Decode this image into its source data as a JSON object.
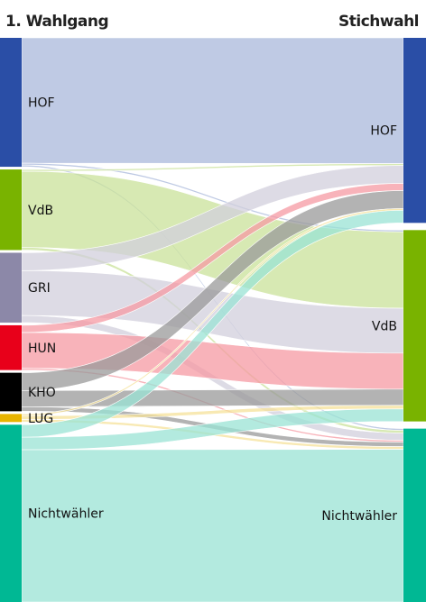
{
  "header": {
    "left_title": "1. Wahlgang",
    "right_title": "Stichwahl"
  },
  "nodes": {
    "left": [
      {
        "id": "HOF",
        "label": "HOF",
        "color": "#2a4ea6"
      },
      {
        "id": "VdB",
        "label": "VdB",
        "color": "#79b300"
      },
      {
        "id": "GRI",
        "label": "GRI",
        "color": "#8c88a8"
      },
      {
        "id": "HUN",
        "label": "HUN",
        "color": "#e8001a"
      },
      {
        "id": "KHO",
        "label": "KHO",
        "color": "#000000"
      },
      {
        "id": "LUG",
        "label": "LUG",
        "color": "#e8b400"
      },
      {
        "id": "NW",
        "label": "Nichtwähler",
        "color": "#00b894"
      }
    ],
    "right": [
      {
        "id": "HOF",
        "label": "HOF",
        "color": "#2a4ea6"
      },
      {
        "id": "VdB",
        "label": "VdB",
        "color": "#79b300"
      },
      {
        "id": "NW",
        "label": "Nichtwähler",
        "color": "#00b894"
      }
    ]
  },
  "flows": [
    {
      "from": "HOF",
      "to": "HOF",
      "value": 140
    },
    {
      "from": "HOF",
      "to": "VdB",
      "value": 2
    },
    {
      "from": "HOF",
      "to": "NW",
      "value": 2
    },
    {
      "from": "VdB",
      "to": "HOF",
      "value": 2
    },
    {
      "from": "VdB",
      "to": "VdB",
      "value": 85
    },
    {
      "from": "VdB",
      "to": "NW",
      "value": 3
    },
    {
      "from": "GRI",
      "to": "HOF",
      "value": 20
    },
    {
      "from": "GRI",
      "to": "VdB",
      "value": 50
    },
    {
      "from": "GRI",
      "to": "NW",
      "value": 8
    },
    {
      "from": "HUN",
      "to": "HOF",
      "value": 8
    },
    {
      "from": "HUN",
      "to": "VdB",
      "value": 40
    },
    {
      "from": "HUN",
      "to": "NW",
      "value": 2
    },
    {
      "from": "KHO",
      "to": "HOF",
      "value": 20
    },
    {
      "from": "KHO",
      "to": "VdB",
      "value": 18
    },
    {
      "from": "KHO",
      "to": "NW",
      "value": 5
    },
    {
      "from": "LUG",
      "to": "HOF",
      "value": 2
    },
    {
      "from": "LUG",
      "to": "VdB",
      "value": 4
    },
    {
      "from": "LUG",
      "to": "NW",
      "value": 3
    },
    {
      "from": "NW",
      "to": "HOF",
      "value": 14
    },
    {
      "from": "NW",
      "to": "VdB",
      "value": 14
    },
    {
      "from": "NW",
      "to": "NW",
      "value": 170
    }
  ]
}
